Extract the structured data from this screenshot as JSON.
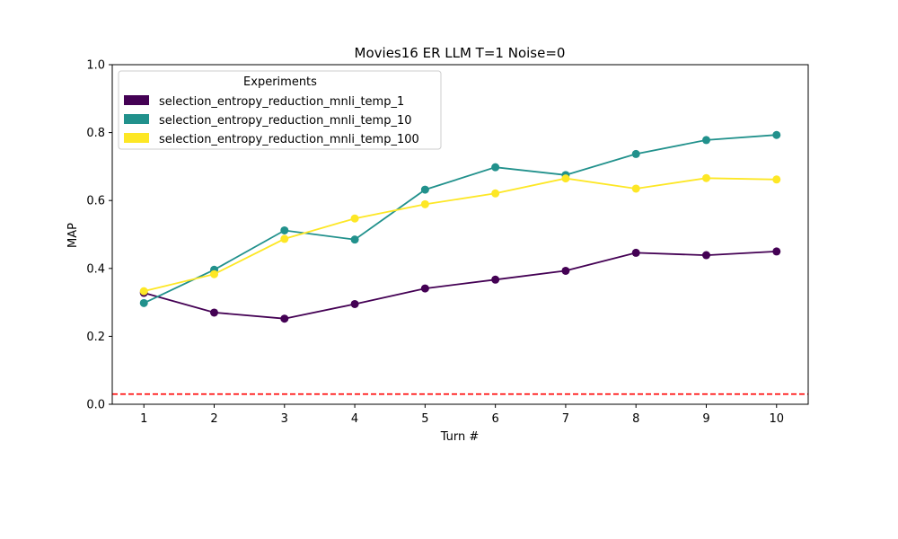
{
  "chart_data": {
    "type": "line",
    "title": "Movies16 ER LLM T=1 Noise=0",
    "xlabel": "Turn #",
    "ylabel": "MAP",
    "x": [
      1,
      2,
      3,
      4,
      5,
      6,
      7,
      8,
      9,
      10
    ],
    "xlim": [
      0.55,
      10.45
    ],
    "ylim": [
      0.0,
      1.0
    ],
    "yticks": [
      0.0,
      0.2,
      0.4,
      0.6,
      0.8,
      1.0
    ],
    "grid": false,
    "legend": {
      "title": "Experiments",
      "placement": "upper-left"
    },
    "series": [
      {
        "name": "selection_entropy_reduction_mnli_temp_1",
        "color": "#440154",
        "values": [
          0.328,
          0.27,
          0.252,
          0.295,
          0.341,
          0.367,
          0.393,
          0.446,
          0.439,
          0.45
        ]
      },
      {
        "name": "selection_entropy_reduction_mnli_temp_10",
        "color": "#21918c",
        "values": [
          0.298,
          0.396,
          0.512,
          0.485,
          0.632,
          0.698,
          0.675,
          0.737,
          0.778,
          0.793
        ]
      },
      {
        "name": "selection_entropy_reduction_mnli_temp_100",
        "color": "#fde725",
        "values": [
          0.333,
          0.383,
          0.487,
          0.547,
          0.589,
          0.621,
          0.665,
          0.635,
          0.666,
          0.662
        ]
      }
    ],
    "baseline": {
      "value": 0.03,
      "color": "#ff0000",
      "style": "dashed"
    }
  }
}
